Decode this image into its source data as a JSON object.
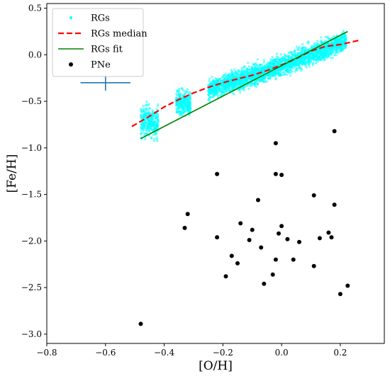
{
  "chart_data": {
    "type": "scatter",
    "xlabel": "[O/H]",
    "ylabel": "[Fe/H]",
    "xlim": [
      -0.8,
      0.35
    ],
    "ylim": [
      -3.1,
      0.55
    ],
    "xticks": [
      -0.8,
      -0.6,
      -0.4,
      -0.2,
      0.0,
      0.2
    ],
    "xtick_labels": [
      "−0.8",
      "−0.6",
      "−0.4",
      "−0.2",
      "0.0",
      "0.2"
    ],
    "yticks": [
      -3.0,
      -2.5,
      -2.0,
      -1.5,
      -1.0,
      -0.5,
      0.0,
      0.5
    ],
    "ytick_labels": [
      "−3.0",
      "−2.5",
      "−2.0",
      "−1.5",
      "−1.0",
      "−0.5",
      "0.0",
      "0.5"
    ],
    "grid": false,
    "legend_position": "top-left",
    "series": [
      {
        "name": "RGs",
        "kind": "scatter-cloud",
        "color": "#00ffff",
        "clusters": [
          {
            "x_range": [
              -0.48,
              -0.42
            ],
            "y_center": -0.72,
            "y_spread": 0.28
          },
          {
            "x_range": [
              -0.36,
              -0.31
            ],
            "y_center": -0.52,
            "y_spread": 0.22
          },
          {
            "x_range": [
              -0.25,
              0.22
            ],
            "trend": [
              [
                -0.25,
                -0.38
              ],
              [
                0.0,
                -0.12
              ],
              [
                0.22,
                0.15
              ]
            ],
            "y_spread": 0.18
          }
        ]
      },
      {
        "name": "RGs median",
        "kind": "line",
        "style": "dashed",
        "color": "#ff0000",
        "x": [
          -0.51,
          -0.45,
          -0.4,
          -0.35,
          -0.3,
          -0.25,
          -0.2,
          -0.15,
          -0.1,
          -0.05,
          0.0,
          0.05,
          0.1,
          0.15,
          0.2,
          0.27
        ],
        "y": [
          -0.77,
          -0.66,
          -0.56,
          -0.48,
          -0.41,
          -0.35,
          -0.3,
          -0.26,
          -0.22,
          -0.17,
          -0.11,
          -0.04,
          0.04,
          0.09,
          0.11,
          0.16
        ]
      },
      {
        "name": "RGs fit",
        "kind": "line",
        "style": "solid",
        "color": "#008000",
        "x": [
          -0.48,
          0.225
        ],
        "y": [
          -0.9,
          0.25
        ]
      },
      {
        "name": "PNe",
        "kind": "scatter",
        "color": "#000000",
        "x": [
          -0.48,
          -0.33,
          -0.32,
          -0.22,
          -0.22,
          -0.19,
          -0.17,
          -0.15,
          -0.14,
          -0.11,
          -0.1,
          -0.08,
          -0.07,
          -0.06,
          -0.03,
          -0.02,
          -0.02,
          -0.02,
          -0.01,
          0.0,
          0.0,
          0.02,
          0.04,
          0.06,
          0.11,
          0.11,
          0.13,
          0.16,
          0.17,
          0.18,
          0.18,
          0.2,
          0.225
        ],
        "y": [
          -2.89,
          -1.86,
          -1.71,
          -1.28,
          -1.96,
          -2.38,
          -2.16,
          -2.24,
          -1.81,
          -1.99,
          -1.88,
          -1.56,
          -2.07,
          -2.46,
          -2.36,
          -0.95,
          -1.28,
          -2.2,
          -1.92,
          -1.29,
          -1.84,
          -1.98,
          -2.2,
          -2.01,
          -1.51,
          -2.27,
          -1.97,
          -1.91,
          -1.96,
          -0.82,
          -1.61,
          -2.57,
          -2.48
        ]
      }
    ],
    "error_bar": {
      "color": "#1f77b4",
      "x": -0.6,
      "y": -0.3,
      "xerr": 0.085,
      "yerr": 0.085
    }
  }
}
